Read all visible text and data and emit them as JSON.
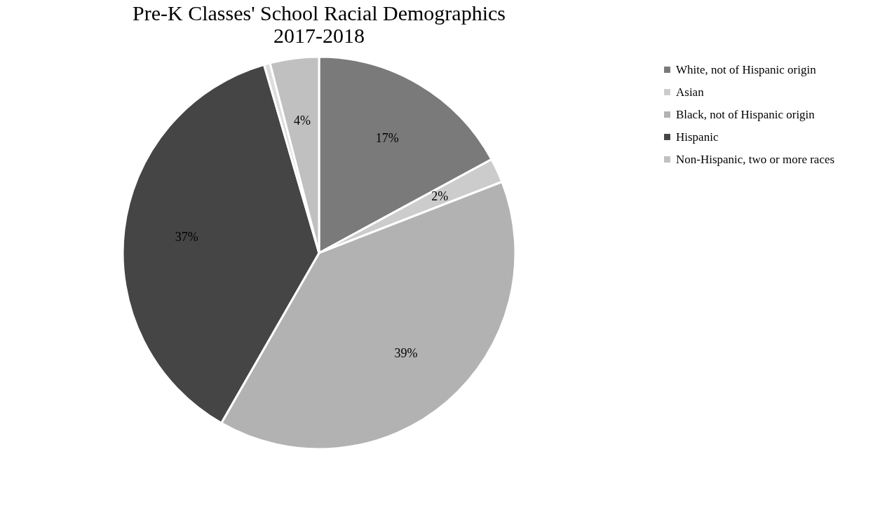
{
  "chart_data": {
    "type": "pie",
    "title": [
      "Pre-K Classes' School Racial Demographics",
      "2017-2018"
    ],
    "categories": [
      "White, not of Hispanic origin",
      "Asian",
      "Black, not of Hispanic origin",
      "Hispanic",
      null,
      "Non-Hispanic, two or more races"
    ],
    "values": [
      17,
      2,
      39,
      37,
      0.5,
      4
    ],
    "value_labels": [
      "17%",
      "2%",
      "39%",
      "37%",
      null,
      "4%"
    ],
    "colors": [
      "#7a7a7a",
      "#cccccc",
      "#b2b2b2",
      "#454545",
      "#dddddd",
      "#c0c0c0"
    ],
    "legend": "right"
  }
}
